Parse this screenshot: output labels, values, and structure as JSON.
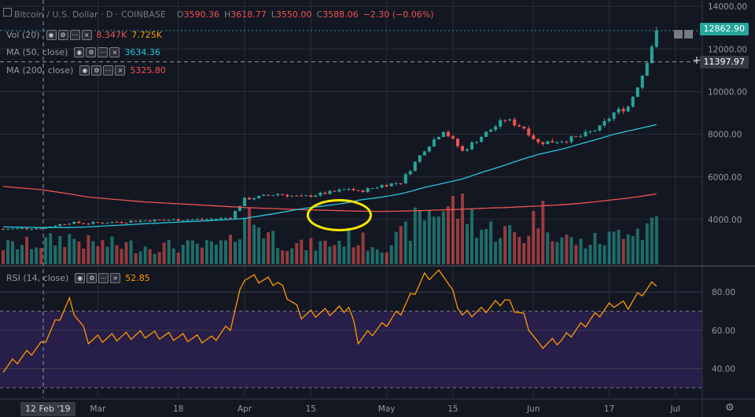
{
  "header": {
    "symbol": "Bitcoin / U.S. Dollar · D · COINBASE",
    "open_label": "O",
    "open": "3590.36",
    "high_label": "H",
    "high": "3618.77",
    "low_label": "L",
    "low": "3550.00",
    "close_label": "C",
    "close": "3588.06",
    "change": "−2.30 (−0.06%)"
  },
  "indicators": [
    {
      "label": "Vol (20)",
      "values": [
        "8.347K",
        "7.725K"
      ],
      "colors": [
        "#ef5350",
        "#ff9800"
      ]
    },
    {
      "label": "MA (50, close)",
      "values": [
        "3634.36"
      ],
      "colors": [
        "#26c6da"
      ]
    },
    {
      "label": "MA (200, close)",
      "values": [
        "5325.80"
      ],
      "colors": [
        "#ef5350"
      ]
    }
  ],
  "rsi": {
    "label": "RSI (14, close)",
    "value": "52.85",
    "color": "#ff9800"
  },
  "price_tags": {
    "last": "12862.90",
    "crosshair": "11397.97"
  },
  "crosshair_date": "12 Feb '19",
  "colors": {
    "up": "#26a69a",
    "down": "#ef5350",
    "ma50": "#26c6da",
    "ma200": "#ef5350",
    "rsi": "#ff9800",
    "band": "#2a1f4e",
    "highlight": "#f5e600"
  },
  "chart_data": {
    "type": "candlestick",
    "price_ticks": [
      4000,
      6000,
      8000,
      10000,
      12000,
      14000
    ],
    "price_tick_labels": [
      "4000.00",
      "6000.00",
      "8000.00",
      "10000.00",
      "12000.00",
      "14000.00"
    ],
    "rsi_ticks": [
      40,
      60,
      80
    ],
    "rsi_tick_labels": [
      "40.00",
      "60.00",
      "80.00"
    ],
    "rsi_bands": [
      30,
      70
    ],
    "x_ticks": [
      {
        "label": "Mar",
        "day": 20
      },
      {
        "label": "18",
        "day": 37
      },
      {
        "label": "Apr",
        "day": 51
      },
      {
        "label": "15",
        "day": 65
      },
      {
        "label": "May",
        "day": 81
      },
      {
        "label": "15",
        "day": 95
      },
      {
        "label": "Jun",
        "day": 112
      },
      {
        "label": "17",
        "day": 128
      },
      {
        "label": "Jul",
        "day": 142
      }
    ],
    "x_range_days": [
      0,
      147
    ],
    "price_range": [
      3000,
      14300
    ],
    "rsi_range": [
      25,
      92
    ],
    "anchors": [
      {
        "day": 0,
        "price": 3550,
        "rsi": 40,
        "vol": 0.3,
        "ma50": 3650,
        "ma200": 5550
      },
      {
        "day": 8,
        "price": 3600,
        "rsi": 52,
        "vol": 0.35,
        "ma50": 3620,
        "ma200": 5400
      },
      {
        "day": 14,
        "price": 3850,
        "rsi": 75,
        "vol": 0.45,
        "ma50": 3620,
        "ma200": 5200
      },
      {
        "day": 18,
        "price": 3820,
        "rsi": 55,
        "vol": 0.35,
        "ma50": 3650,
        "ma200": 5050
      },
      {
        "day": 30,
        "price": 3950,
        "rsi": 58,
        "vol": 0.3,
        "ma50": 3800,
        "ma200": 4820
      },
      {
        "day": 44,
        "price": 4020,
        "rsi": 55,
        "vol": 0.3,
        "ma50": 3950,
        "ma200": 4650
      },
      {
        "day": 48,
        "price": 4100,
        "rsi": 62,
        "vol": 0.35,
        "ma50": 4000,
        "ma200": 4600
      },
      {
        "day": 51,
        "price": 4950,
        "rsi": 88,
        "vol": 0.85,
        "ma50": 4050,
        "ma200": 4560
      },
      {
        "day": 58,
        "price": 5200,
        "rsi": 85,
        "vol": 0.4,
        "ma50": 4300,
        "ma200": 4500
      },
      {
        "day": 63,
        "price": 5050,
        "rsi": 68,
        "vol": 0.3,
        "ma50": 4500,
        "ma200": 4460
      },
      {
        "day": 70,
        "price": 5300,
        "rsi": 70,
        "vol": 0.35,
        "ma50": 4700,
        "ma200": 4420
      },
      {
        "day": 73,
        "price": 5450,
        "rsi": 72,
        "vol": 0.45,
        "ma50": 4800,
        "ma200": 4400
      },
      {
        "day": 75,
        "price": 5300,
        "rsi": 55,
        "vol": 0.4,
        "ma50": 4900,
        "ma200": 4390
      },
      {
        "day": 80,
        "price": 5600,
        "rsi": 62,
        "vol": 0.3,
        "ma50": 5050,
        "ma200": 4380
      },
      {
        "day": 84,
        "price": 5750,
        "rsi": 70,
        "vol": 0.45,
        "ma50": 5200,
        "ma200": 4390
      },
      {
        "day": 89,
        "price": 7300,
        "rsi": 88,
        "vol": 0.85,
        "ma50": 5500,
        "ma200": 4420
      },
      {
        "day": 93,
        "price": 8200,
        "rsi": 90,
        "vol": 0.95,
        "ma50": 5700,
        "ma200": 4450
      },
      {
        "day": 97,
        "price": 7200,
        "rsi": 68,
        "vol": 0.95,
        "ma50": 5900,
        "ma200": 4480
      },
      {
        "day": 101,
        "price": 7900,
        "rsi": 70,
        "vol": 0.6,
        "ma50": 6200,
        "ma200": 4520
      },
      {
        "day": 106,
        "price": 8700,
        "rsi": 76,
        "vol": 0.55,
        "ma50": 6550,
        "ma200": 4560
      },
      {
        "day": 110,
        "price": 8300,
        "rsi": 67,
        "vol": 0.45,
        "ma50": 6850,
        "ma200": 4600
      },
      {
        "day": 113,
        "price": 7600,
        "rsi": 52,
        "vol": 0.9,
        "ma50": 7050,
        "ma200": 4630
      },
      {
        "day": 118,
        "price": 7700,
        "rsi": 55,
        "vol": 0.45,
        "ma50": 7300,
        "ma200": 4690
      },
      {
        "day": 122,
        "price": 7900,
        "rsi": 62,
        "vol": 0.35,
        "ma50": 7550,
        "ma200": 4760
      },
      {
        "day": 126,
        "price": 8300,
        "rsi": 69,
        "vol": 0.4,
        "ma50": 7800,
        "ma200": 4850
      },
      {
        "day": 129,
        "price": 9000,
        "rsi": 74,
        "vol": 0.45,
        "ma50": 8000,
        "ma200": 4930
      },
      {
        "day": 132,
        "price": 9300,
        "rsi": 73,
        "vol": 0.7,
        "ma50": 8150,
        "ma200": 5000
      },
      {
        "day": 135,
        "price": 10800,
        "rsi": 80,
        "vol": 0.55,
        "ma50": 8300,
        "ma200": 5100
      },
      {
        "day": 138,
        "price": 12862.9,
        "rsi": 85,
        "vol": 0.8,
        "ma50": 8450,
        "ma200": 5200
      }
    ]
  }
}
